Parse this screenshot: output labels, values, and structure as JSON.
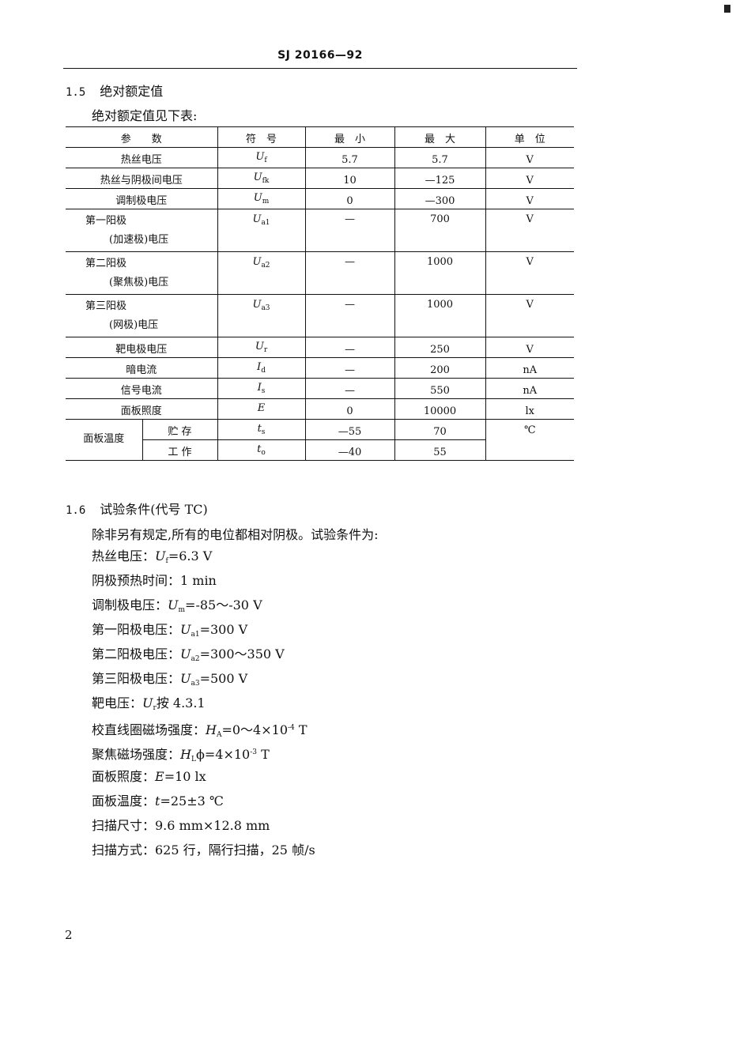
{
  "header": "SJ 20166—92",
  "section15": {
    "num": "1.5",
    "title": "绝对额定值",
    "intro": "绝对额定值见下表:"
  },
  "table": {
    "headers": [
      "参　　数",
      "符　号",
      "最　小",
      "最　大",
      "单　位"
    ],
    "rows": [
      {
        "name": [
          "热丝电压"
        ],
        "sym": "U",
        "sub": "f",
        "min": "5.7",
        "max": "5.7",
        "unit": "V"
      },
      {
        "name": [
          "热丝与阴极间电压"
        ],
        "sym": "U",
        "sub": "fk",
        "min": "10",
        "max": "—125",
        "unit": "V"
      },
      {
        "name": [
          "调制极电压"
        ],
        "sym": "U",
        "sub": "m",
        "min": "0",
        "max": "—300",
        "unit": "V"
      },
      {
        "name": [
          "第一阳极",
          "(加速极)电压"
        ],
        "sym": "U",
        "sub": "a1",
        "min": "—",
        "max": "700",
        "unit": "V"
      },
      {
        "name": [
          "第二阳极",
          "(聚焦极)电压"
        ],
        "sym": "U",
        "sub": "a2",
        "min": "—",
        "max": "1000",
        "unit": "V"
      },
      {
        "name": [
          "第三阳极",
          "(网极)电压"
        ],
        "sym": "U",
        "sub": "a3",
        "min": "—",
        "max": "1000",
        "unit": "V"
      },
      {
        "name": [
          "靶电极电压"
        ],
        "sym": "U",
        "sub": "r",
        "min": "—",
        "max": "250",
        "unit": "V"
      },
      {
        "name": [
          "暗电流"
        ],
        "sym": "I",
        "sub": "d",
        "min": "—",
        "max": "200",
        "unit": "nA"
      },
      {
        "name": [
          "信号电流"
        ],
        "sym": "I",
        "sub": "s",
        "min": "—",
        "max": "550",
        "unit": "nA"
      },
      {
        "name": [
          "面板照度"
        ],
        "sym": "E",
        "sub": "",
        "min": "0",
        "max": "10000",
        "unit": "lx"
      }
    ],
    "temp": {
      "name": "面板温度",
      "unit": "℃",
      "rows": [
        {
          "label": "贮 存",
          "sym": "t",
          "sub": "s",
          "min": "—55",
          "max": "70"
        },
        {
          "label": "工 作",
          "sym": "t",
          "sub": "o",
          "min": "—40",
          "max": "55"
        }
      ]
    }
  },
  "section16": {
    "num": "1.6",
    "title": "试验条件(代号 TC)",
    "intro": "除非另有规定,所有的电位都相对阴极。试验条件为:"
  },
  "conditions": [
    [
      {
        "t": "热丝电压：",
        "k": "n"
      },
      {
        "t": "U",
        "k": "i"
      },
      {
        "t": "f",
        "k": "sub"
      },
      {
        "t": "=6.3 V",
        "k": "n"
      }
    ],
    [
      {
        "t": "阴极预热时间：1 min",
        "k": "n"
      }
    ],
    [
      {
        "t": "调制极电压：",
        "k": "n"
      },
      {
        "t": "U",
        "k": "i"
      },
      {
        "t": "m",
        "k": "sub"
      },
      {
        "t": "=-85～-30 V",
        "k": "n"
      }
    ],
    [
      {
        "t": "第一阳极电压：",
        "k": "n"
      },
      {
        "t": "U",
        "k": "i"
      },
      {
        "t": "a1",
        "k": "sub"
      },
      {
        "t": "=300 V",
        "k": "n"
      }
    ],
    [
      {
        "t": "第二阳极电压：",
        "k": "n"
      },
      {
        "t": "U",
        "k": "i"
      },
      {
        "t": "a2",
        "k": "sub"
      },
      {
        "t": "=300～350 V",
        "k": "n"
      }
    ],
    [
      {
        "t": "第三阳极电压：",
        "k": "n"
      },
      {
        "t": "U",
        "k": "i"
      },
      {
        "t": "a3",
        "k": "sub"
      },
      {
        "t": "=500 V",
        "k": "n"
      }
    ],
    [
      {
        "t": "靶电压：",
        "k": "n"
      },
      {
        "t": "U",
        "k": "i"
      },
      {
        "t": "r",
        "k": "sub"
      },
      {
        "t": "按 4.3.1",
        "k": "n"
      }
    ],
    [
      {
        "t": "校直线圈磁场强度：",
        "k": "n"
      },
      {
        "t": "H",
        "k": "i"
      },
      {
        "t": "A",
        "k": "sub"
      },
      {
        "t": "=0～4×10",
        "k": "n"
      },
      {
        "t": "-4",
        "k": "sup"
      },
      {
        "t": " T",
        "k": "n"
      }
    ],
    [
      {
        "t": "聚焦磁场强度：",
        "k": "n"
      },
      {
        "t": "H",
        "k": "i"
      },
      {
        "t": "L",
        "k": "sub"
      },
      {
        "t": "ϕ=4×10",
        "k": "n"
      },
      {
        "t": "-3",
        "k": "sup"
      },
      {
        "t": " T",
        "k": "n"
      }
    ],
    [
      {
        "t": "面板照度：",
        "k": "n"
      },
      {
        "t": "E",
        "k": "i"
      },
      {
        "t": "=10 lx",
        "k": "n"
      }
    ],
    [
      {
        "t": "面板温度：",
        "k": "n"
      },
      {
        "t": "t",
        "k": "i"
      },
      {
        "t": "=25±3 ℃",
        "k": "n"
      }
    ],
    [
      {
        "t": "扫描尺寸：9.6 mm×12.8 mm",
        "k": "n"
      }
    ],
    [
      {
        "t": "扫描方式：625 行，隔行扫描，25 帧/s",
        "k": "n"
      }
    ]
  ],
  "page_number": "2"
}
